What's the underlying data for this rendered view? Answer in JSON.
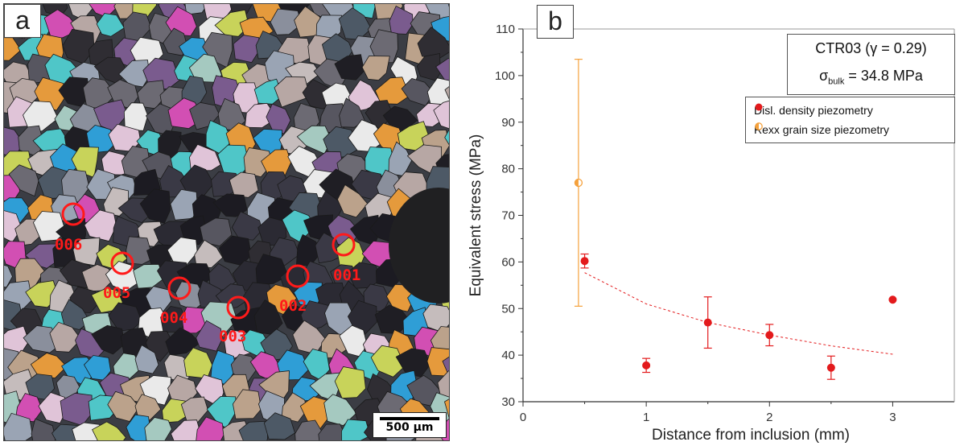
{
  "panel_a": {
    "label": "a",
    "scale_bar_text": "500 µm",
    "roi_labels": [
      "006",
      "005",
      "004",
      "003",
      "002",
      "001"
    ],
    "colors": {
      "roi": "#ff1a1a"
    }
  },
  "panel_b": {
    "label": "b",
    "info_line1": "CTR03 (γ = 0.29)",
    "info_sigma": "σ",
    "info_sub": "bulk",
    "info_value": " = 34.8 MPa"
  },
  "chart_data": {
    "type": "scatter",
    "xlabel": "Distance from inclusion (mm)",
    "ylabel": "Equivalent stress (MPa)",
    "xlim": [
      0,
      3.5
    ],
    "ylim": [
      30,
      110
    ],
    "x_ticks": [
      0,
      1,
      2,
      3
    ],
    "y_ticks": [
      30,
      40,
      50,
      60,
      70,
      80,
      90,
      100,
      110
    ],
    "grid": false,
    "legend": "top-right",
    "series": [
      {
        "name": "Disl. density piezometry",
        "color": "#e31a1c",
        "points": [
          {
            "x": 0.5,
            "y": 60.2,
            "err_low": 1.5,
            "err_high": 1.5
          },
          {
            "x": 1.0,
            "y": 37.8,
            "err_low": 1.5,
            "err_high": 1.5
          },
          {
            "x": 1.5,
            "y": 47.0,
            "err_low": 5.5,
            "err_high": 5.5
          },
          {
            "x": 2.0,
            "y": 44.3,
            "err_low": 2.3,
            "err_high": 2.3
          },
          {
            "x": 2.5,
            "y": 37.3,
            "err_low": 2.5,
            "err_high": 2.5
          },
          {
            "x": 3.0,
            "y": 51.9,
            "err_low": 0,
            "err_high": 0
          }
        ]
      },
      {
        "name": "Rexx grain size piezometry",
        "color": "#f5a13c",
        "points": [
          {
            "x": 0.45,
            "y": 77.0,
            "err_low": 26.5,
            "err_high": 26.5
          }
        ]
      }
    ],
    "fit": {
      "style": "dashed",
      "color": "#e31a1c",
      "points": [
        [
          0.5,
          57.7
        ],
        [
          1.0,
          51.0
        ],
        [
          1.5,
          47.0
        ],
        [
          2.0,
          44.3
        ],
        [
          2.5,
          42.0
        ],
        [
          3.0,
          40.2
        ]
      ]
    }
  }
}
